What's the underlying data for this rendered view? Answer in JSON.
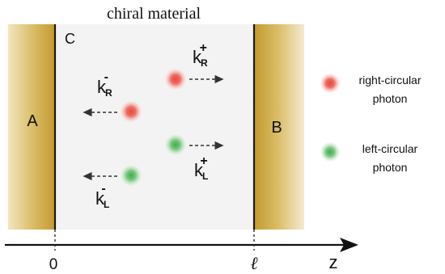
{
  "title": "chiral material",
  "regions": {
    "left": "A",
    "chiral": "C",
    "right": "B"
  },
  "wave_labels": {
    "kR_minus": {
      "base": "k",
      "sub": "R",
      "sup": "-"
    },
    "kR_plus": {
      "base": "k",
      "sub": "R",
      "sup": "+"
    },
    "kL_plus": {
      "base": "k",
      "sub": "L",
      "sup": "+"
    },
    "kL_minus": {
      "base": "k",
      "sub": "L",
      "sup": "-"
    }
  },
  "axis": {
    "origin": "0",
    "length": "ℓ",
    "label": "z"
  },
  "legend": [
    {
      "label_line1": "right-circular",
      "label_line2": "photon",
      "color": "#e8473c"
    },
    {
      "label_line1": "left-circular",
      "label_line2": "photon",
      "color": "#4caf50"
    }
  ],
  "colors": {
    "slab": "#c9a43c",
    "slab_light": "#efe0b2",
    "chiral_bg": "#f3f3f3",
    "red_photon": "#e8473c",
    "green_photon": "#4caf50"
  }
}
